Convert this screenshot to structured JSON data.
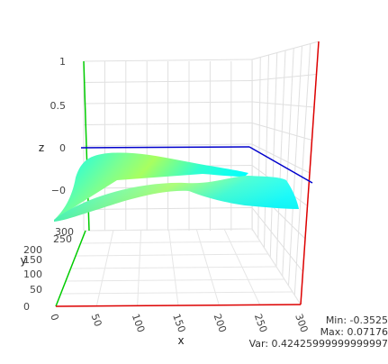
{
  "chart_data": {
    "type": "surface",
    "x_ticks": [
      "0",
      "50",
      "100",
      "150",
      "200",
      "250",
      "300"
    ],
    "y_ticks": [
      "0",
      "50",
      "100",
      "150",
      "200",
      "250",
      "300"
    ],
    "z_ticks": [
      "1",
      "0.5",
      "0",
      "−0"
    ],
    "xlabel": "x",
    "ylabel": "y",
    "zlabel": "z",
    "xlim": [
      0,
      300
    ],
    "ylim": [
      0,
      300
    ],
    "zlim": [
      -1,
      1
    ],
    "grid": true,
    "colorscale": [
      "#00ffff",
      "#a8ff60"
    ],
    "axis_colors": {
      "x": "#dd0000",
      "y": "#00cc00",
      "z": "#0000cc"
    },
    "stats": {
      "min_label": "Min: -0.3525",
      "max_label": "Max: 0.07176",
      "var_label": "Var: 0.42425999999999997"
    }
  }
}
